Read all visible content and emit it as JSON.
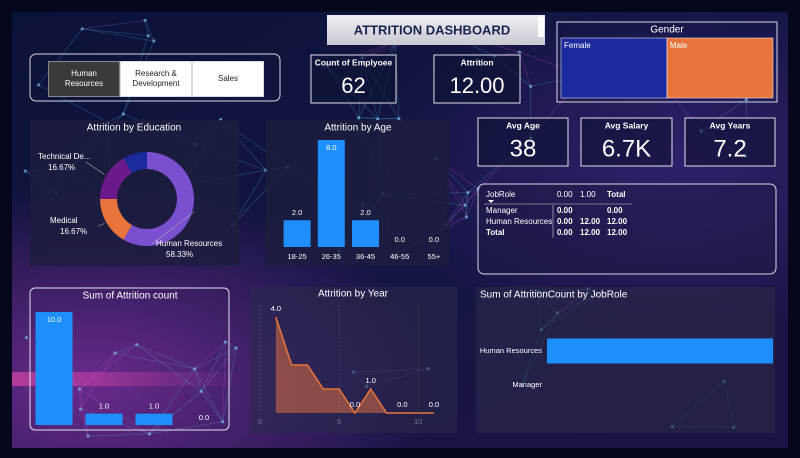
{
  "title": "ATTRITION DASHBOARD",
  "slicer": {
    "items": [
      "Human Resources",
      "Research & Development",
      "Sales"
    ],
    "selected": 0
  },
  "cards": [
    {
      "label": "Count of Emplyoee",
      "value": "62"
    },
    {
      "label": "Attrition",
      "value": "12.00"
    },
    {
      "label": "Avg Age",
      "value": "38"
    },
    {
      "label": "Avg Salary",
      "value": "6.7K"
    },
    {
      "label": "Avg Years",
      "value": "7.2"
    }
  ],
  "matrix": {
    "columns": [
      "JobRole",
      "0.00",
      "1.00",
      "Total"
    ],
    "rows": [
      [
        "Manager",
        "0.00",
        null,
        "0.00"
      ],
      [
        "Human Resources",
        "0.00",
        "12.00",
        "12.00"
      ],
      [
        "Total",
        "0.00",
        "12.00",
        "12.00"
      ]
    ]
  },
  "chart_data": [
    {
      "type": "treemap",
      "title": "Gender",
      "categories": [
        "Female",
        "Male"
      ],
      "values": [
        6,
        6
      ],
      "colors": [
        "#1a2a9c",
        "#e8743b"
      ]
    },
    {
      "type": "pie",
      "title": "Attrition by Education",
      "categories": [
        "Human Resources",
        "Medical",
        "Technical De...",
        null
      ],
      "values": [
        58.33,
        16.67,
        16.67,
        8.33
      ],
      "value_labels": [
        "58.33%",
        "16.67%",
        "16.67%",
        null
      ],
      "colors": [
        "#7a4fd0",
        "#e8743b",
        "#6b1a8c",
        "#1a2a9c"
      ],
      "donut": true
    },
    {
      "type": "bar",
      "title": "Attrition by Age",
      "categories": [
        "18-25",
        "26-35",
        "36-45",
        "46-55",
        "55+"
      ],
      "values": [
        2,
        8,
        2,
        0,
        0
      ],
      "value_labels": [
        "2.0",
        "8.0",
        "2.0",
        "0.0",
        "0.0"
      ],
      "color": "#1e8fff",
      "ylim": [
        0,
        8
      ]
    },
    {
      "type": "bar",
      "title": "Sum of Attrition count",
      "categories": [
        null,
        null,
        null,
        null
      ],
      "values": [
        10,
        1,
        1,
        0
      ],
      "value_labels": [
        "10.0",
        "1.0",
        "1.0",
        "0.0"
      ],
      "color": "#1e8fff",
      "ylim": [
        0,
        10
      ]
    },
    {
      "type": "area",
      "title": "Attrition by Year",
      "x": [
        1,
        2,
        3,
        4,
        5,
        6,
        7,
        8,
        9,
        10,
        11
      ],
      "values": [
        4,
        2,
        2,
        1,
        1,
        0,
        1,
        0,
        0,
        0,
        0
      ],
      "value_labels": [
        "4.0",
        null,
        null,
        null,
        null,
        "0.0",
        "1.0",
        null,
        "0.0",
        null,
        "0.0"
      ],
      "color": "#e8743b",
      "xlim": [
        0,
        11
      ],
      "xticks": [
        0,
        5,
        10
      ],
      "ylim": [
        0,
        4.5
      ]
    },
    {
      "type": "hbar",
      "title": "Sum of AttritionCount by JobRole",
      "categories": [
        "Human Resources",
        "Manager"
      ],
      "values": [
        12,
        0
      ],
      "color": "#1e8fff",
      "xlim": [
        0,
        12
      ]
    }
  ]
}
